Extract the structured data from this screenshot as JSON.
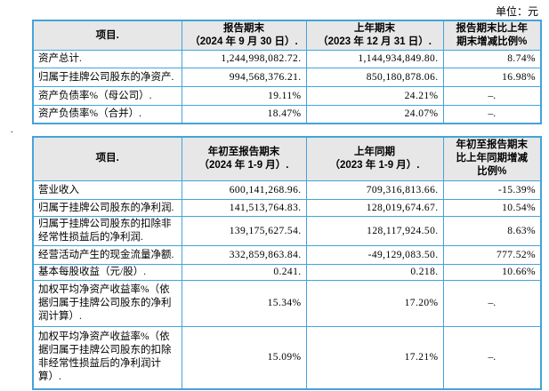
{
  "page": {
    "unit_label": "单位：元",
    "paragraph_mark": "."
  },
  "colors": {
    "border": "#45a3da",
    "header_bg": "#e7e7e7",
    "text": "#000000"
  },
  "tables": [
    {
      "id": "period-end-summary",
      "headers": [
        "项目.",
        "报告期末\n（2024 年 9 月 30 日）.",
        "上年期末\n（2023 年 12 月 31 日）.",
        "报告期末比上年\n期末增减比例%"
      ],
      "rows": [
        [
          "资产总计.",
          "1,244,998,082.72.",
          "1,144,934,849.80.",
          "8.74%"
        ],
        [
          "归属于挂牌公司股东的净资产.",
          "994,568,376.21.",
          "850,180,878.06.",
          "16.98%"
        ],
        [
          "资产负债率%（母公司）.",
          "19.11%",
          "24.21%",
          "–."
        ],
        [
          "资产负债率%（合并）.",
          "18.47%",
          "24.07%",
          "–."
        ]
      ]
    },
    {
      "id": "year-to-date-summary",
      "headers": [
        "项目.",
        "年初至报告期末\n（2024 年 1-9 月）.",
        "上年同期\n（2023 年 1-9 月）.",
        "年初至报告期末\n比上年同期增减\n比例%"
      ],
      "rows": [
        [
          "营业收入",
          "600,141,268.96.",
          "709,316,813.66.",
          "-15.39%"
        ],
        [
          "归属于挂牌公司股东的净利润.",
          "141,513,764.83.",
          "128,019,674.67.",
          "10.54%"
        ],
        [
          "归属于挂牌公司股东的扣除非\n经常性损益后的净利润.",
          "139,175,627.54.",
          "128,117,924.50.",
          "8.63%"
        ],
        [
          "经营活动产生的现金流量净额.",
          "332,859,863.84.",
          "-49,129,083.50.",
          "777.52%"
        ],
        [
          "基本每股收益（元/股）.",
          "0.241.",
          "0.218.",
          "10.66%"
        ],
        [
          "加权平均净资产收益率%（依\n据归属于挂牌公司股东的净利\n润计算）.",
          "15.34%",
          "17.20%",
          "–."
        ],
        [
          "加权平均净资产收益率%（依\n据归属于挂牌公司股东的扣除\n非经常性损益后的净利润计\n算）.",
          "15.09%",
          "17.21%",
          "–."
        ]
      ]
    }
  ]
}
